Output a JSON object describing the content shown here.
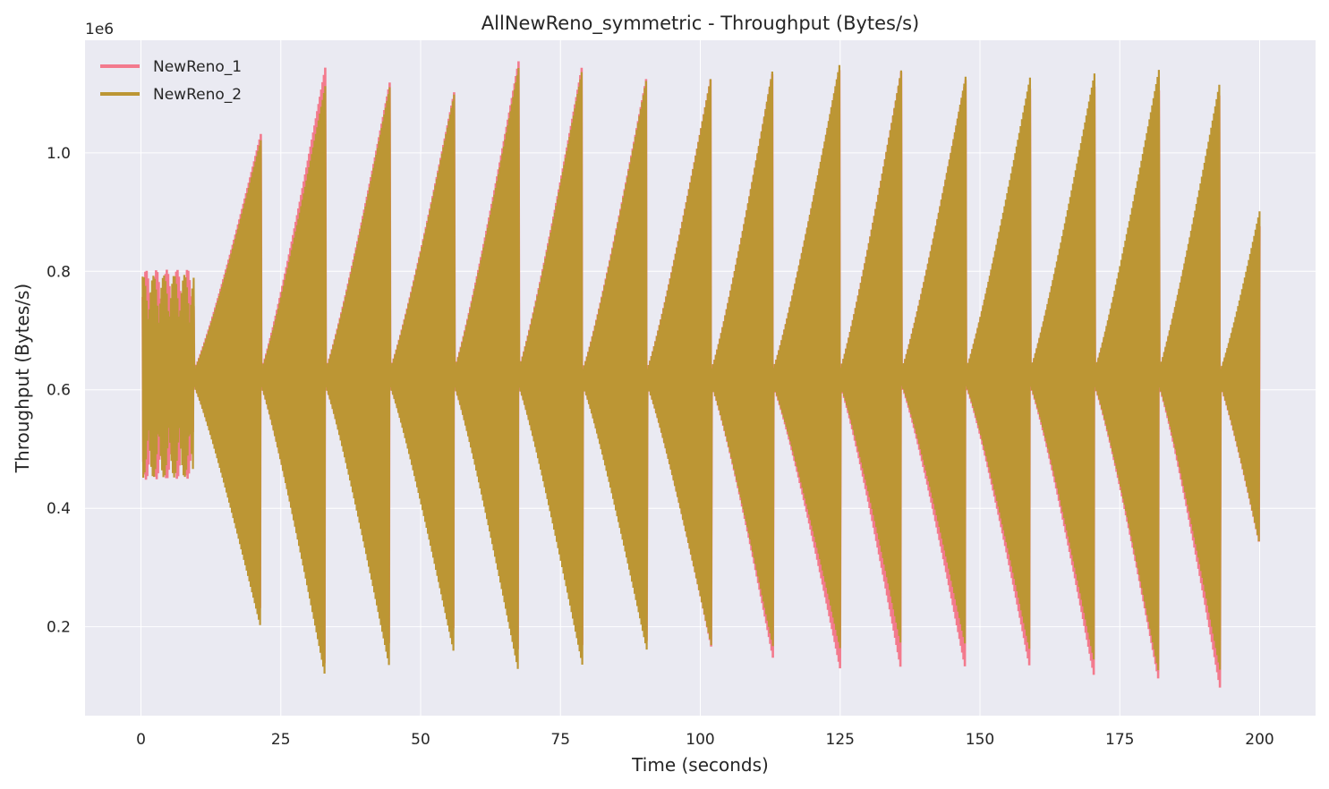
{
  "chart_data": {
    "type": "line",
    "title": "AllNewReno_symmetric - Throughput (Bytes/s)",
    "xlabel": "Time (seconds)",
    "ylabel": "Throughput (Bytes/s)",
    "y_scale_label": "1e6",
    "xlim": [
      -10,
      210
    ],
    "ylim": [
      50000,
      1190000
    ],
    "xticks": [
      0,
      25,
      50,
      75,
      100,
      125,
      150,
      175,
      200
    ],
    "xtick_labels": [
      "0",
      "25",
      "50",
      "75",
      "100",
      "125",
      "150",
      "175",
      "200"
    ],
    "yticks": [
      200000,
      400000,
      600000,
      800000,
      1000000
    ],
    "ytick_labels": [
      "0.2",
      "0.4",
      "0.6",
      "0.8",
      "1.0"
    ],
    "grid": true,
    "legend_position": "top-left",
    "sampling_note_x_step": 0.1,
    "series": [
      {
        "name": "NewReno_1",
        "color": "#f37a8d",
        "peaks_x": [
          21.5,
          33,
          44.5,
          56,
          67.5,
          79,
          90.5,
          102,
          113,
          125,
          136,
          147.5,
          159,
          170.5,
          182,
          193,
          200
        ],
        "peak_high": [
          1030000,
          1140000,
          1110000,
          1090000,
          1140000,
          1140000,
          1120000,
          1110000,
          1130000,
          1140000,
          1110000,
          1120000,
          1120000,
          1120000,
          1130000,
          1140000,
          890000
        ],
        "peak_low": [
          220000,
          130000,
          140000,
          150000,
          110000,
          110000,
          130000,
          120000,
          130000,
          100000,
          100000,
          110000,
          130000,
          110000,
          110000,
          120000,
          350000
        ],
        "start_band": [
          0.3,
          9.5,
          440000,
          810000
        ],
        "center": 620000
      },
      {
        "name": "NewReno_2",
        "color": "#bc9634",
        "peaks_x": [
          21.5,
          33,
          44.5,
          56,
          67.5,
          79,
          90.5,
          102,
          113,
          125,
          136,
          147.5,
          159,
          170.5,
          182,
          193,
          200
        ],
        "peak_high": [
          1040000,
          1130000,
          1110000,
          1090000,
          1140000,
          1140000,
          1120000,
          1100000,
          1130000,
          1140000,
          1110000,
          1120000,
          1120000,
          1120000,
          1140000,
          1130000,
          900000
        ],
        "peak_low": [
          230000,
          120000,
          120000,
          140000,
          100000,
          100000,
          130000,
          120000,
          120000,
          110000,
          110000,
          120000,
          130000,
          110000,
          100000,
          120000,
          360000
        ],
        "start_band": [
          0.3,
          9.5,
          450000,
          810000
        ],
        "center": 620000
      }
    ]
  }
}
